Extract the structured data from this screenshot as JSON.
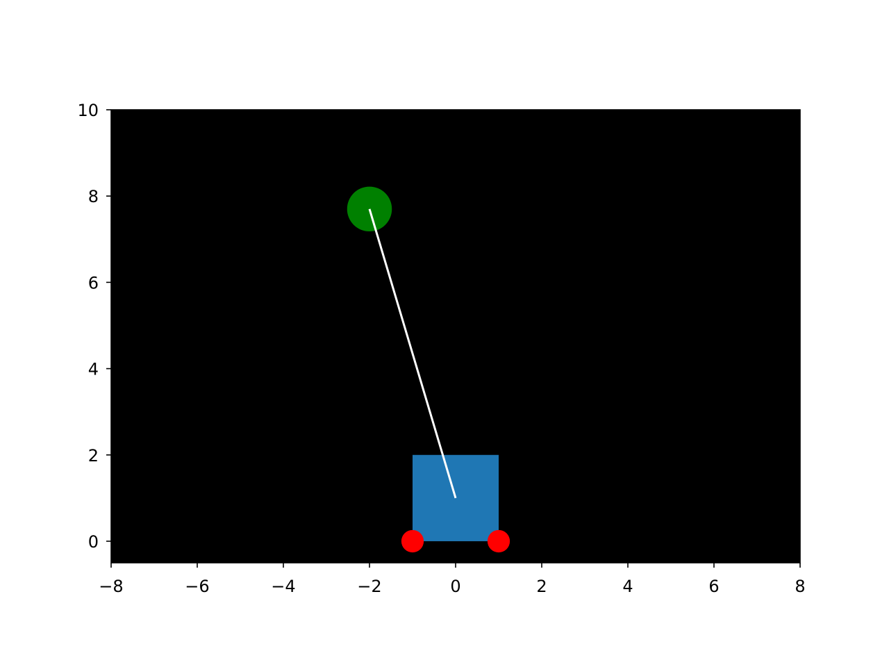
{
  "chart_data": {
    "type": "scatter",
    "title": "",
    "xlabel": "",
    "ylabel": "",
    "xlim": [
      -8,
      8
    ],
    "ylim": [
      -0.5,
      10
    ],
    "grid": false,
    "x_ticks": [
      -8,
      -6,
      -4,
      -2,
      0,
      2,
      4,
      6,
      8
    ],
    "x_tick_labels": [
      "−8",
      "−6",
      "−4",
      "−2",
      "0",
      "2",
      "4",
      "6",
      "8"
    ],
    "y_ticks": [
      0,
      2,
      4,
      6,
      8,
      10
    ],
    "y_tick_labels": [
      "0",
      "2",
      "4",
      "6",
      "8",
      "10"
    ],
    "background_color": "#000000",
    "cart": {
      "x0": -1,
      "y0": 0,
      "x1": 1,
      "y1": 2,
      "color": "#1f77b4"
    },
    "wheels": [
      {
        "x": -1,
        "y": 0,
        "radius": 0.26,
        "color": "#ff0000"
      },
      {
        "x": 1,
        "y": 0,
        "radius": 0.26,
        "color": "#ff0000"
      }
    ],
    "pole": {
      "x0": 0,
      "y0": 1,
      "x1": -2,
      "y1": 7.7,
      "color": "#ffffff"
    },
    "bob": {
      "x": -2,
      "y": 7.7,
      "radius": 0.52,
      "color": "#008000"
    }
  }
}
